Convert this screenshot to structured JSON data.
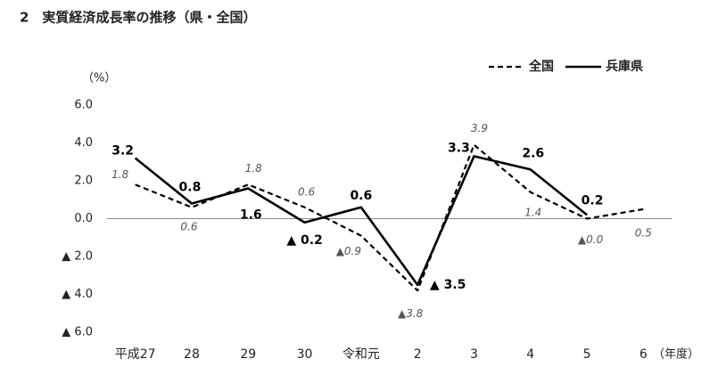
{
  "chart_data": {
    "type": "line",
    "title": "2　実質経済成長率の推移（県・全国）",
    "y_label": "（%）",
    "x_label": "（年度）",
    "categories": [
      "平成27",
      "28",
      "29",
      "30",
      "令和元",
      "2",
      "3",
      "4",
      "5",
      "6"
    ],
    "series": [
      {
        "name": "全国",
        "color": "#000000",
        "dash": true,
        "values": [
          1.8,
          0.6,
          1.8,
          0.6,
          -0.9,
          -3.8,
          3.9,
          1.4,
          0.0,
          0.5
        ],
        "value_labels": [
          "1.8",
          "0.6",
          "1.8",
          "0.6",
          "▲0.9",
          "▲3.8",
          "3.9",
          "1.4",
          "▲0.0",
          "0.5"
        ]
      },
      {
        "name": "兵庫県",
        "color": "#000000",
        "dash": false,
        "values": [
          3.2,
          0.8,
          1.6,
          -0.2,
          0.6,
          -3.5,
          3.3,
          2.6,
          0.2,
          null
        ],
        "value_labels": [
          "3.2",
          "0.8",
          "1.6",
          "▲ 0.2",
          "0.6",
          "▲ 3.5",
          "3.3",
          "2.6",
          "0.2",
          null
        ]
      }
    ],
    "ylim": [
      -6,
      6
    ],
    "yticks": [
      {
        "value": 6,
        "label": "6.0"
      },
      {
        "value": 4,
        "label": "4.0"
      },
      {
        "value": 2,
        "label": "2.0"
      },
      {
        "value": 0,
        "label": "0.0"
      },
      {
        "value": -2,
        "label": "▲ 2.0"
      },
      {
        "value": -4,
        "label": "▲ 4.0"
      },
      {
        "value": -6,
        "label": "▲ 6.0"
      }
    ],
    "grid": false,
    "legend": "upper right"
  }
}
